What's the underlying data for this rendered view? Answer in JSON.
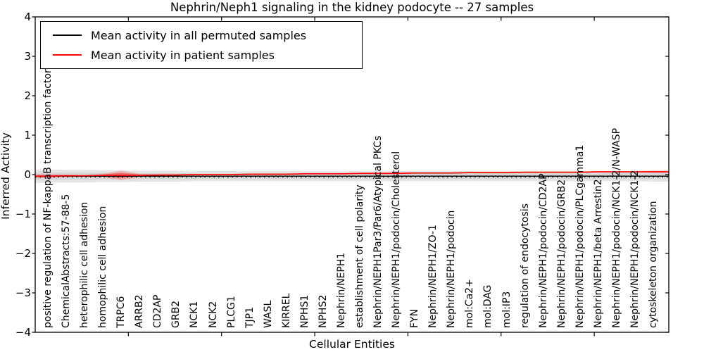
{
  "title": "Nephrin/Neph1 signaling in the kidney podocyte -- 27 samples",
  "legend": {
    "items": [
      {
        "label": "Mean activity in all permuted samples",
        "color": "#000000"
      },
      {
        "label": "Mean activity in patient samples",
        "color": "#ff0000"
      }
    ]
  },
  "chart_data": {
    "type": "line",
    "title": "Nephrin/Neph1 signaling in the kidney podocyte -- 27 samples",
    "xlabel": "Cellular Entities",
    "ylabel": "Inferred Activity",
    "ylim": [
      -4,
      4
    ],
    "grid": false,
    "legend_position": "upper left",
    "ytick_values": [
      4,
      3,
      2,
      1,
      0,
      -1,
      -2,
      -3,
      -4
    ],
    "ytick_labels": [
      "4",
      "3",
      "2",
      "1",
      "0",
      "−1",
      "−2",
      "−3",
      "−4"
    ],
    "xticks_numeric": [
      5,
      10,
      15,
      20,
      25,
      30
    ],
    "categories": [
      "positive regulation of NF-kappaB transcription factor a",
      "ChemicalAbstracts:57-88-5",
      "heterophilic cell adhesion",
      "homophilic cell adhesion",
      "TRPC6",
      "ARRB2",
      "CD2AP",
      "GRB2",
      "NCK1",
      "NCK2",
      "PLCG1",
      "TJP1",
      "WASL",
      "KIRREL",
      "NPHS1",
      "NPHS2",
      "Nephrin/NEPH1",
      "establishment of cell polarity",
      "Nephrin/NEPH1Par3/Par6/Atypical PKCs",
      "Nephrin/NEPH1/podocin/Cholesterol",
      "FYN",
      "Nephrin/NEPH1/ZO-1",
      "Nephrin/NEPH1/podocin",
      "mol:Ca2+",
      "mol:DAG",
      "mol:IP3",
      "regulation of endocytosis",
      "Nephrin/NEPH1/podocin/CD2AP",
      "Nephrin/NEPH1/podocin/GRB2",
      "Nephrin/NEPH1/podocin/PLCgamma1",
      "Nephrin/NEPH1/beta Arrestin2",
      "Nephrin/NEPH1/podocin/NCK1-2/N-WASP",
      "Nephrin/NEPH1/podocin/NCK1-2",
      "cytoskeleton organization"
    ],
    "series": [
      {
        "name": "Mean activity in all permuted samples",
        "color": "#000000",
        "band_color": "#aaaaaa",
        "values": [
          -0.04,
          -0.04,
          -0.04,
          -0.04,
          -0.04,
          -0.04,
          -0.04,
          -0.04,
          -0.04,
          -0.04,
          -0.04,
          -0.04,
          -0.04,
          -0.04,
          -0.04,
          -0.04,
          -0.04,
          -0.04,
          -0.04,
          -0.04,
          -0.04,
          -0.04,
          -0.04,
          -0.04,
          -0.04,
          -0.04,
          -0.04,
          -0.04,
          -0.04,
          -0.04,
          -0.04,
          -0.04,
          -0.04,
          -0.04
        ],
        "band_halfwidth": [
          0.17,
          0.16,
          0.16,
          0.15,
          0.15,
          0.14,
          0.14,
          0.14,
          0.13,
          0.13,
          0.13,
          0.13,
          0.13,
          0.13,
          0.13,
          0.13,
          0.13,
          0.13,
          0.13,
          0.13,
          0.13,
          0.13,
          0.13,
          0.13,
          0.13,
          0.13,
          0.13,
          0.13,
          0.13,
          0.13,
          0.13,
          0.13,
          0.13,
          0.14
        ]
      },
      {
        "name": "Mean activity in patient samples",
        "color": "#ff0000",
        "band_color": "#ff0000",
        "values": [
          -0.04,
          -0.03,
          -0.03,
          -0.02,
          -0.02,
          -0.02,
          -0.01,
          -0.01,
          0,
          0,
          0,
          0.01,
          0.01,
          0.01,
          0.02,
          0.02,
          0.02,
          0.03,
          0.03,
          0.03,
          0.04,
          0.04,
          0.04,
          0.05,
          0.05,
          0.05,
          0.06,
          0.06,
          0.06,
          0.06,
          0.07,
          0.07,
          0.07,
          0.07
        ],
        "band_halfwidth": [
          0.05,
          0.03,
          0.02,
          0.04,
          0.12,
          0.04,
          0.02,
          0.02,
          0.02,
          0.02,
          0.02,
          0.02,
          0.02,
          0.02,
          0.02,
          0.02,
          0.02,
          0.02,
          0.02,
          0.02,
          0.02,
          0.02,
          0.02,
          0.02,
          0.02,
          0.02,
          0.02,
          0.02,
          0.02,
          0.02,
          0.02,
          0.02,
          0.02,
          0.03
        ]
      }
    ]
  }
}
